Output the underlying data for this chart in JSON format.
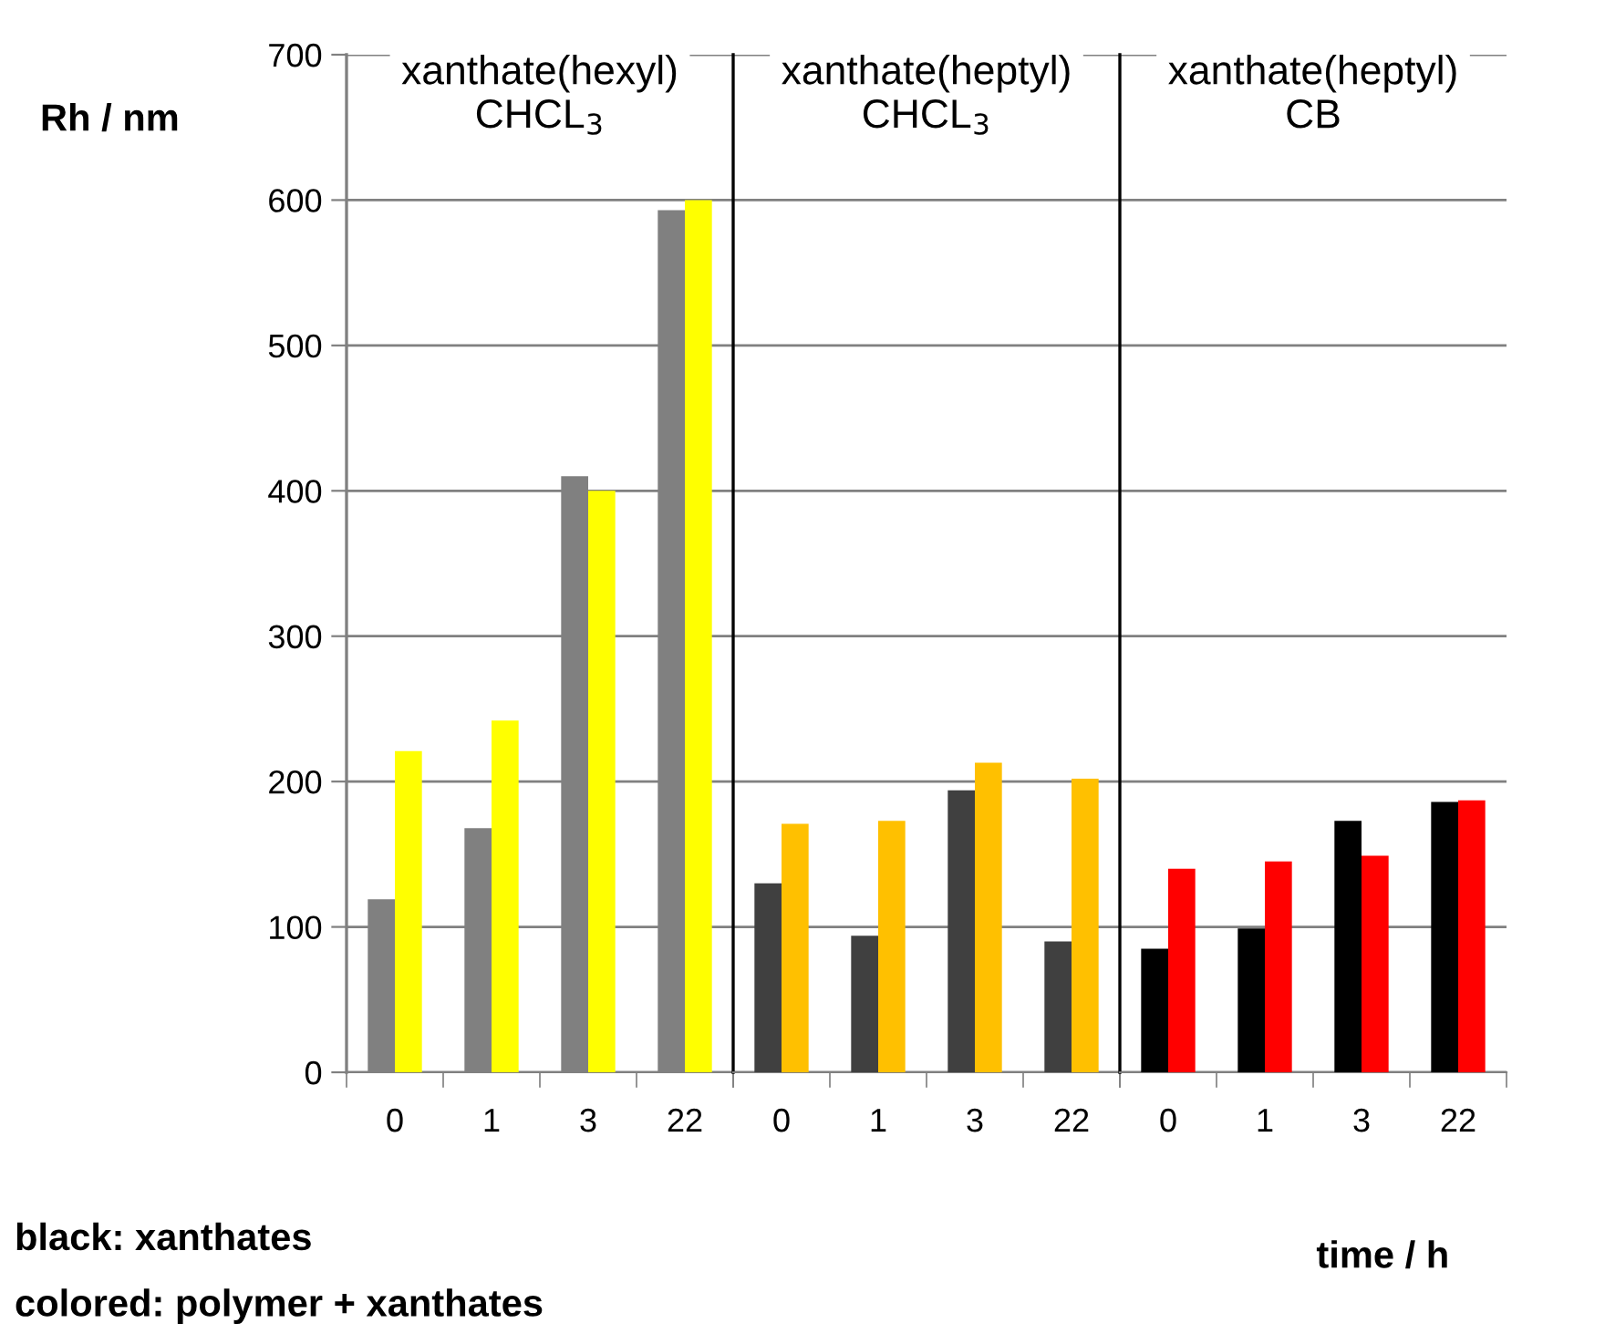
{
  "chart_data": [
    {
      "type": "bar",
      "title": "xanthate(hexyl)\nCHCL$_{3}$",
      "ylabel": "Rh / nm",
      "categories": [
        "0",
        "1",
        "3",
        "22"
      ],
      "series": [
        {
          "color": "#808080",
          "values": [
            119,
            168,
            410,
            593
          ]
        },
        {
          "color": "#ffff00",
          "values": [
            221,
            242,
            400,
            600
          ]
        }
      ],
      "ylim": [
        0,
        700
      ],
      "yticks": [
        0,
        100,
        200,
        300,
        400,
        500,
        600,
        700
      ],
      "grid": "y",
      "annotations": [
        "black: xanthates",
        "colored: polymer + xanthates"
      ]
    },
    {
      "type": "bar",
      "title": "xanthate(heptyl)\nCHCL$_{3}$",
      "categories": [
        "0",
        "1",
        "3",
        "22"
      ],
      "series": [
        {
          "color": "#404040",
          "values": [
            130,
            94,
            194,
            90
          ]
        },
        {
          "color": "#ffc000",
          "values": [
            171,
            173,
            213,
            202
          ]
        }
      ],
      "ylim": [
        0,
        700
      ],
      "grid": "y",
      "tick_labels": "x"
    },
    {
      "type": "bar",
      "title": "xanthate(heptyl)\nCB",
      "xlabel": "time / h",
      "categories": [
        "0",
        "1",
        "3",
        "22"
      ],
      "series": [
        {
          "color": "#000000",
          "values": [
            85,
            99,
            173,
            186
          ]
        },
        {
          "color": "#ff0000",
          "values": [
            140,
            145,
            149,
            187
          ]
        }
      ],
      "ylim": [
        0,
        700
      ],
      "grid": "y",
      "tick_labels": "x"
    }
  ]
}
